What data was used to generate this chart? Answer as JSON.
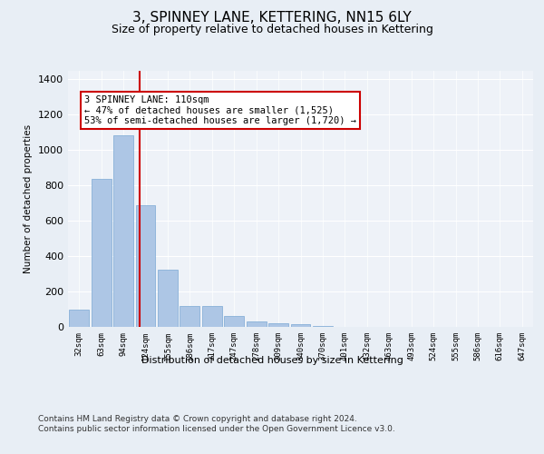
{
  "title1": "3, SPINNEY LANE, KETTERING, NN15 6LY",
  "title2": "Size of property relative to detached houses in Kettering",
  "xlabel": "Distribution of detached houses by size in Kettering",
  "ylabel": "Number of detached properties",
  "categories": [
    "32sqm",
    "63sqm",
    "94sqm",
    "124sqm",
    "155sqm",
    "186sqm",
    "217sqm",
    "247sqm",
    "278sqm",
    "309sqm",
    "340sqm",
    "370sqm",
    "401sqm",
    "432sqm",
    "463sqm",
    "493sqm",
    "524sqm",
    "555sqm",
    "586sqm",
    "616sqm",
    "647sqm"
  ],
  "values": [
    95,
    835,
    1085,
    690,
    325,
    120,
    120,
    60,
    30,
    20,
    15,
    5,
    0,
    0,
    0,
    0,
    0,
    0,
    0,
    0,
    0
  ],
  "bar_color": "#adc6e5",
  "bar_edge_color": "#7aa8d4",
  "vline_x": 2.72,
  "vline_color": "#cc0000",
  "annotation_text": "3 SPINNEY LANE: 110sqm\n← 47% of detached houses are smaller (1,525)\n53% of semi-detached houses are larger (1,720) →",
  "annotation_box_color": "#ffffff",
  "annotation_box_edge_color": "#cc0000",
  "ylim": [
    0,
    1450
  ],
  "yticks": [
    0,
    200,
    400,
    600,
    800,
    1000,
    1200,
    1400
  ],
  "bg_color": "#e8eef5",
  "plot_bg_color": "#eef2f8",
  "footer": "Contains HM Land Registry data © Crown copyright and database right 2024.\nContains public sector information licensed under the Open Government Licence v3.0.",
  "title1_fontsize": 11,
  "title2_fontsize": 9,
  "annotation_fontsize": 7.5,
  "footer_fontsize": 6.5,
  "xlabel_fontsize": 8
}
